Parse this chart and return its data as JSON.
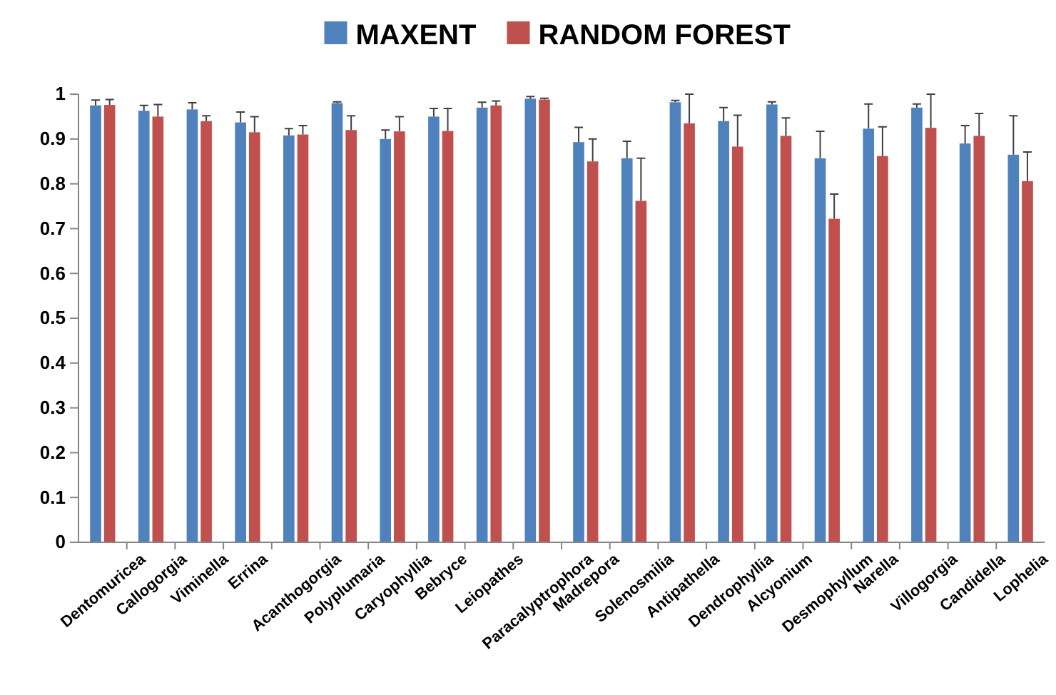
{
  "chart_data": {
    "type": "bar",
    "categories": [
      "Dentomuricea",
      "Callogorgia",
      "Viminella",
      "Errina",
      "Acanthogorgia",
      "Polyplumaria",
      "Caryophyllia",
      "Bebryce",
      "Leiopathes",
      "Paracalyptrophora",
      "Madrepora",
      "Solenosmilia",
      "Antipathella",
      "Dendrophyllia",
      "Alcyonium",
      "Desmophyllum",
      "Narella",
      "Villogorgia",
      "Candidella",
      "Lophelia"
    ],
    "series": [
      {
        "name": "MAXENT",
        "color": "#4f81bd",
        "values": [
          0.975,
          0.963,
          0.966,
          0.937,
          0.908,
          0.98,
          0.9,
          0.95,
          0.97,
          0.99,
          0.893,
          0.857,
          0.982,
          0.94,
          0.977,
          0.857,
          0.923,
          0.97,
          0.89,
          0.865
        ],
        "errors": [
          [
            0.975,
            0.987
          ],
          [
            0.963,
            0.975
          ],
          [
            0.966,
            0.981
          ],
          [
            0.937,
            0.96
          ],
          [
            0.908,
            0.923
          ],
          [
            0.98,
            0.983
          ],
          [
            0.9,
            0.92
          ],
          [
            0.95,
            0.968
          ],
          [
            0.97,
            0.982
          ],
          [
            0.99,
            0.995
          ],
          [
            0.893,
            0.926
          ],
          [
            0.857,
            0.895
          ],
          [
            0.982,
            0.986
          ],
          [
            0.94,
            0.97
          ],
          [
            0.977,
            0.983
          ],
          [
            0.857,
            0.917
          ],
          [
            0.923,
            0.978
          ],
          [
            0.97,
            0.978
          ],
          [
            0.89,
            0.93
          ],
          [
            0.865,
            0.952
          ]
        ]
      },
      {
        "name": "RANDOM FOREST",
        "color": "#c0504d",
        "values": [
          0.976,
          0.95,
          0.94,
          0.915,
          0.91,
          0.92,
          0.917,
          0.918,
          0.975,
          0.988,
          0.85,
          0.762,
          0.935,
          0.883,
          0.907,
          0.722,
          0.862,
          0.925,
          0.907,
          0.806
        ],
        "errors": [
          [
            0.976,
            0.988
          ],
          [
            0.95,
            0.977
          ],
          [
            0.94,
            0.952
          ],
          [
            0.915,
            0.95
          ],
          [
            0.91,
            0.93
          ],
          [
            0.92,
            0.952
          ],
          [
            0.917,
            0.95
          ],
          [
            0.918,
            0.968
          ],
          [
            0.975,
            0.985
          ],
          [
            0.988,
            0.991
          ],
          [
            0.85,
            0.9
          ],
          [
            0.762,
            0.857
          ],
          [
            0.935,
            1.0
          ],
          [
            0.883,
            0.953
          ],
          [
            0.907,
            0.947
          ],
          [
            0.722,
            0.777
          ],
          [
            0.862,
            0.927
          ],
          [
            0.925,
            1.0
          ],
          [
            0.907,
            0.957
          ],
          [
            0.806,
            0.871
          ]
        ]
      }
    ],
    "ylim": [
      0,
      1
    ],
    "yticks": [
      0,
      0.1,
      0.2,
      0.3,
      0.4,
      0.5,
      0.6,
      0.7,
      0.8,
      0.9,
      1
    ],
    "grid": false,
    "legend": "top"
  }
}
